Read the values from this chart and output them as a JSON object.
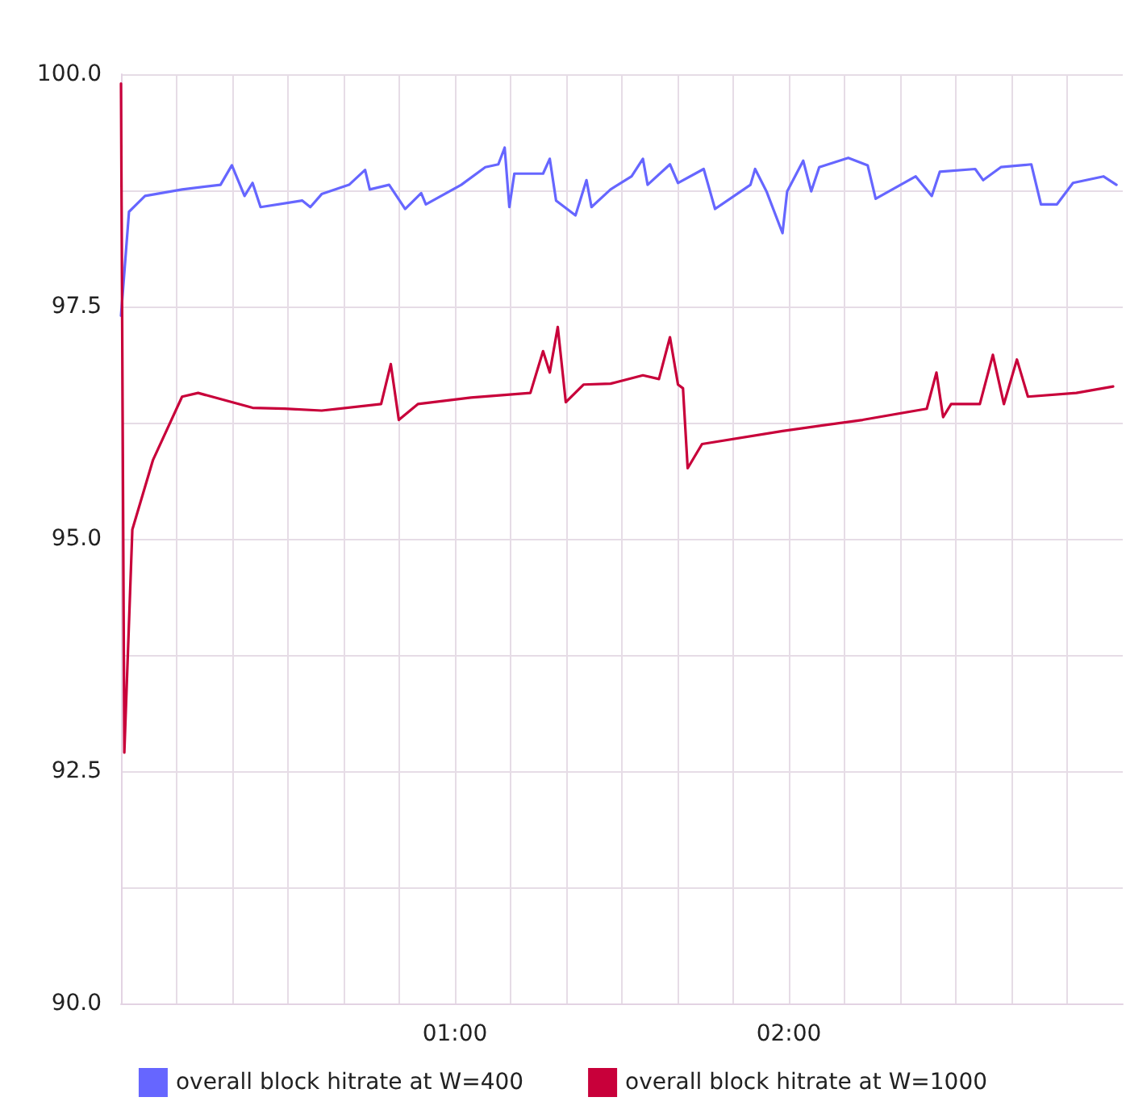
{
  "chart_data": {
    "type": "line",
    "xlim": [
      0,
      3
    ],
    "xticks": [
      {
        "value": 0.167,
        "label": null
      },
      {
        "value": 0.333,
        "label": null
      },
      {
        "value": 0.5,
        "label": null
      },
      {
        "value": 0.667,
        "label": null
      },
      {
        "value": 0.833,
        "label": null
      },
      {
        "value": 1,
        "label": "01:00"
      },
      {
        "value": 1.167,
        "label": null
      },
      {
        "value": 1.333,
        "label": null
      },
      {
        "value": 1.5,
        "label": null
      },
      {
        "value": 1.667,
        "label": null
      },
      {
        "value": 1.833,
        "label": null
      },
      {
        "value": 2,
        "label": "02:00"
      },
      {
        "value": 2.167,
        "label": null
      },
      {
        "value": 2.333,
        "label": null
      },
      {
        "value": 2.5,
        "label": null
      },
      {
        "value": 2.667,
        "label": null
      },
      {
        "value": 2.833,
        "label": null
      }
    ],
    "ylim": [
      90,
      100
    ],
    "yticks": [
      {
        "value": 90,
        "label": "90.0"
      },
      {
        "value": 91.25,
        "label": null
      },
      {
        "value": 92.5,
        "label": "92.5"
      },
      {
        "value": 93.75,
        "label": null
      },
      {
        "value": 95,
        "label": "95.0"
      },
      {
        "value": 96.25,
        "label": null
      },
      {
        "value": 97.5,
        "label": "97.5"
      },
      {
        "value": 98.75,
        "label": null
      },
      {
        "value": 100,
        "label": "100.0"
      }
    ],
    "grid": true,
    "legend": "bottom",
    "marker": "none",
    "line_style": "solid",
    "series": [
      {
        "name": "overall block hitrate at W=400",
        "color": "#6666ff",
        "x": [
          0,
          0.024,
          0.072,
          0.183,
          0.298,
          0.332,
          0.37,
          0.394,
          0.418,
          0.543,
          0.567,
          0.601,
          0.683,
          0.731,
          0.745,
          0.803,
          0.851,
          0.899,
          0.913,
          1.019,
          1.091,
          1.13,
          1.149,
          1.163,
          1.178,
          1.264,
          1.284,
          1.303,
          1.361,
          1.394,
          1.409,
          1.466,
          1.529,
          1.563,
          1.577,
          1.644,
          1.668,
          1.745,
          1.779,
          1.885,
          1.899,
          1.933,
          1.981,
          1.995,
          2.043,
          2.067,
          2.091,
          2.178,
          2.236,
          2.26,
          2.38,
          2.428,
          2.452,
          2.558,
          2.582,
          2.635,
          2.726,
          2.755,
          2.803,
          2.851,
          2.942,
          2.981
        ],
        "values": [
          97.4,
          98.52,
          98.69,
          98.76,
          98.81,
          99.02,
          98.69,
          98.83,
          98.57,
          98.64,
          98.57,
          98.71,
          98.81,
          98.97,
          98.76,
          98.81,
          98.55,
          98.72,
          98.6,
          98.81,
          99.0,
          99.03,
          99.21,
          98.57,
          98.93,
          98.93,
          99.09,
          98.64,
          98.48,
          98.86,
          98.57,
          98.76,
          98.9,
          99.09,
          98.81,
          99.03,
          98.83,
          98.98,
          98.55,
          98.81,
          98.98,
          98.74,
          98.29,
          98.74,
          99.07,
          98.74,
          99.0,
          99.1,
          99.02,
          98.66,
          98.9,
          98.69,
          98.95,
          98.98,
          98.86,
          99.0,
          99.03,
          98.6,
          98.6,
          98.83,
          98.9,
          98.81
        ]
      },
      {
        "name": "overall block hitrate at W=1000",
        "color": "#c8003a",
        "x": [
          0,
          0.01,
          0.034,
          0.096,
          0.183,
          0.231,
          0.394,
          0.49,
          0.601,
          0.779,
          0.808,
          0.832,
          0.889,
          1.048,
          1.226,
          1.264,
          1.284,
          1.308,
          1.332,
          1.385,
          1.466,
          1.563,
          1.611,
          1.644,
          1.668,
          1.683,
          1.697,
          1.74,
          1.981,
          2.221,
          2.413,
          2.442,
          2.462,
          2.486,
          2.572,
          2.611,
          2.644,
          2.683,
          2.716,
          2.861,
          2.971
        ],
        "values": [
          99.9,
          92.7,
          95.1,
          95.85,
          96.53,
          96.57,
          96.41,
          96.4,
          96.38,
          96.45,
          96.88,
          96.28,
          96.45,
          96.52,
          96.57,
          97.02,
          96.79,
          97.28,
          96.47,
          96.66,
          96.67,
          96.76,
          96.72,
          97.17,
          96.66,
          96.62,
          95.76,
          96.02,
          96.16,
          96.28,
          96.4,
          96.79,
          96.31,
          96.45,
          96.45,
          96.98,
          96.45,
          96.93,
          96.53,
          96.57,
          96.64
        ]
      }
    ]
  }
}
